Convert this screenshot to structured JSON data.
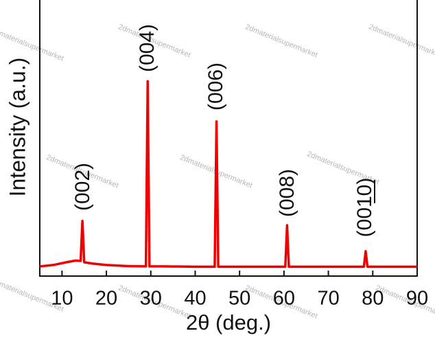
{
  "chart_data": {
    "type": "line",
    "watermark": "2dmaterialsupermarket",
    "x_label": "2θ (deg.)",
    "y_label": "Intensity (a.u.)",
    "annotations": [
      "(002)",
      "(004)",
      "(006)",
      "(008)",
      "(0010)"
    ],
    "xlim": [
      5,
      90
    ],
    "xticks": [
      10,
      20,
      30,
      40,
      50,
      60,
      70,
      80,
      90
    ],
    "ylim": [
      0,
      100
    ],
    "x": [
      5,
      8,
      11,
      13,
      14.2,
      14.6,
      15.0,
      17,
      20,
      25,
      28.9,
      29.3,
      29.7,
      33,
      40,
      44.4,
      44.8,
      45.2,
      50,
      55,
      60.3,
      60.7,
      61.1,
      70,
      78.0,
      78.4,
      78.8,
      85,
      90
    ],
    "series": [
      {
        "color": "#ee0000",
        "values": [
          3.5,
          4,
          5,
          5.6,
          5.5,
          20,
          5,
          4.5,
          4,
          3.6,
          3.5,
          70.6,
          3.5,
          3.5,
          3.4,
          3.4,
          56,
          3.4,
          3.4,
          3.4,
          3.4,
          18.4,
          3.4,
          3.4,
          3.4,
          9,
          3.4,
          3.4,
          3.4
        ]
      }
    ]
  }
}
